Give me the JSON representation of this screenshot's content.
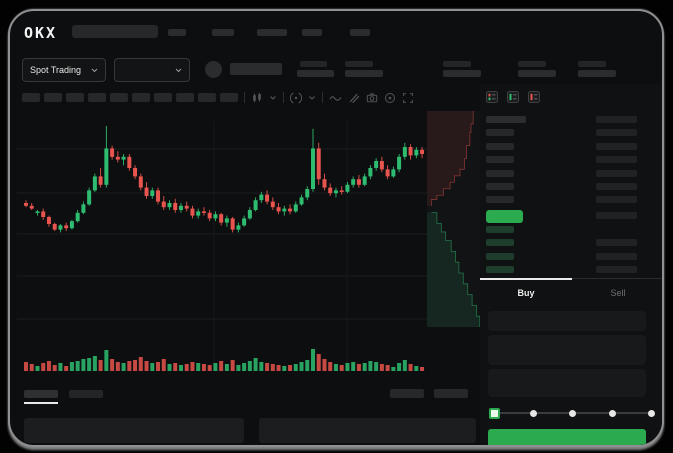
{
  "colors": {
    "accent_green": "#2BAA4F",
    "candle_green": "#2EBD70",
    "candle_red": "#E8544E",
    "background": "#0D0E0F",
    "bid_row_green": "#1E3D2C",
    "ask_row_gray": "#26282A",
    "amount_bar_gray": "#202224",
    "tab_active_text": "#EDEDED",
    "tab_inactive_text": "#6E7071"
  },
  "header": {
    "logo_text": "OKX"
  },
  "market_bar": {
    "market_type_label": "Spot Trading"
  },
  "chart_toolbar": {
    "timeframe_placeholder_count": 10,
    "icons": [
      "chart-type-icon",
      "chevron-down-icon",
      "indicators-icon",
      "chevron-down-icon",
      "line-tool-icon",
      "drawing-tools-icon",
      "camera-icon",
      "target-icon",
      "fullscreen-icon"
    ]
  },
  "order_book": {
    "view_icons": [
      "combined-book-icon",
      "bids-only-icon",
      "asks-only-icon"
    ],
    "has_header_row": true,
    "ask_row_count": 6,
    "bid_row_count": 4
  },
  "trade_panel": {
    "buy_tab_label": "Buy",
    "sell_tab_label": "Sell",
    "field_count": 3,
    "slider": {
      "stop_count": 5,
      "active_stop_index": 0
    }
  },
  "bottom_panel": {
    "tab_count": 2,
    "active_tab_index": 0,
    "right_button_count": 2,
    "table_placeholder_count": 2
  },
  "chart_data": {
    "type": "candlestick",
    "up_color": "#2EBD70",
    "down_color": "#E8544E",
    "grid": true,
    "price_scale_range": [
      0,
      100
    ],
    "candles": [
      [
        45,
        47,
        42,
        43
      ],
      [
        43,
        45,
        40,
        41
      ],
      [
        38,
        40,
        36,
        39
      ],
      [
        39,
        41,
        33,
        35
      ],
      [
        35,
        36,
        28,
        30
      ],
      [
        30,
        31,
        25,
        26
      ],
      [
        26,
        30,
        24,
        29
      ],
      [
        29,
        31,
        25,
        27
      ],
      [
        27,
        33,
        26,
        32
      ],
      [
        32,
        40,
        31,
        38
      ],
      [
        38,
        46,
        37,
        44
      ],
      [
        44,
        56,
        43,
        54
      ],
      [
        54,
        66,
        53,
        64
      ],
      [
        64,
        70,
        56,
        58
      ],
      [
        58,
        100,
        56,
        84
      ],
      [
        84,
        86,
        76,
        78
      ],
      [
        78,
        82,
        74,
        76
      ],
      [
        76,
        80,
        72,
        78
      ],
      [
        78,
        80,
        68,
        70
      ],
      [
        70,
        72,
        62,
        64
      ],
      [
        64,
        66,
        54,
        56
      ],
      [
        56,
        60,
        48,
        50
      ],
      [
        50,
        56,
        48,
        54
      ],
      [
        54,
        56,
        44,
        46
      ],
      [
        46,
        50,
        40,
        42
      ],
      [
        42,
        47,
        40,
        45
      ],
      [
        45,
        48,
        38,
        40
      ],
      [
        40,
        45,
        38,
        43
      ],
      [
        43,
        46,
        39,
        41
      ],
      [
        41,
        43,
        34,
        36
      ],
      [
        36,
        41,
        34,
        39
      ],
      [
        39,
        42,
        36,
        38
      ],
      [
        38,
        40,
        32,
        34
      ],
      [
        34,
        39,
        32,
        37
      ],
      [
        37,
        38,
        29,
        31
      ],
      [
        31,
        36,
        28,
        34
      ],
      [
        34,
        35,
        24,
        26
      ],
      [
        26,
        31,
        24,
        29
      ],
      [
        29,
        36,
        28,
        34
      ],
      [
        34,
        42,
        33,
        40
      ],
      [
        40,
        49,
        39,
        47
      ],
      [
        47,
        53,
        45,
        51
      ],
      [
        51,
        54,
        44,
        46
      ],
      [
        46,
        49,
        40,
        42
      ],
      [
        42,
        45,
        37,
        39
      ],
      [
        39,
        43,
        36,
        41
      ],
      [
        41,
        44,
        37,
        39
      ],
      [
        39,
        46,
        38,
        44
      ],
      [
        44,
        51,
        43,
        49
      ],
      [
        49,
        57,
        47,
        55
      ],
      [
        55,
        98,
        53,
        84
      ],
      [
        84,
        88,
        58,
        62
      ],
      [
        62,
        66,
        54,
        56
      ],
      [
        56,
        59,
        50,
        52
      ],
      [
        52,
        56,
        49,
        54
      ],
      [
        54,
        57,
        51,
        53
      ],
      [
        53,
        60,
        52,
        58
      ],
      [
        58,
        64,
        56,
        62
      ],
      [
        62,
        65,
        56,
        58
      ],
      [
        58,
        66,
        57,
        64
      ],
      [
        64,
        72,
        62,
        70
      ],
      [
        70,
        77,
        68,
        75
      ],
      [
        75,
        78,
        67,
        69
      ],
      [
        69,
        72,
        62,
        64
      ],
      [
        64,
        71,
        63,
        69
      ],
      [
        69,
        80,
        67,
        78
      ],
      [
        78,
        88,
        76,
        85
      ],
      [
        85,
        87,
        76,
        79
      ],
      [
        79,
        85,
        77,
        83
      ],
      [
        83,
        85,
        77,
        80
      ]
    ],
    "volumes": [
      9,
      7,
      5,
      8,
      10,
      6,
      8,
      5,
      9,
      10,
      12,
      13,
      15,
      11,
      21,
      12,
      9,
      8,
      10,
      11,
      14,
      10,
      8,
      9,
      12,
      7,
      8,
      6,
      7,
      9,
      8,
      7,
      6,
      8,
      10,
      7,
      11,
      6,
      8,
      10,
      13,
      9,
      8,
      7,
      6,
      5,
      6,
      7,
      9,
      11,
      22,
      17,
      12,
      9,
      7,
      6,
      8,
      9,
      7,
      8,
      10,
      9,
      7,
      6,
      4,
      8,
      11,
      7,
      5,
      4
    ]
  },
  "depth_chart": {
    "type": "depth",
    "ask_color": "#E8544E",
    "bid_color": "#2EBD70",
    "asks_curve": [
      [
        0.86,
        0.0
      ],
      [
        0.84,
        0.06
      ],
      [
        0.8,
        0.1
      ],
      [
        0.78,
        0.16
      ],
      [
        0.72,
        0.22
      ],
      [
        0.68,
        0.27
      ],
      [
        0.6,
        0.3
      ],
      [
        0.5,
        0.33
      ],
      [
        0.42,
        0.36
      ],
      [
        0.3,
        0.39
      ],
      [
        0.18,
        0.41
      ],
      [
        0.08,
        0.44
      ]
    ],
    "bids_curve": [
      [
        0.08,
        0.47
      ],
      [
        0.18,
        0.52
      ],
      [
        0.26,
        0.56
      ],
      [
        0.34,
        0.6
      ],
      [
        0.44,
        0.65
      ],
      [
        0.52,
        0.7
      ],
      [
        0.58,
        0.75
      ],
      [
        0.66,
        0.8
      ],
      [
        0.74,
        0.85
      ],
      [
        0.82,
        0.9
      ],
      [
        0.9,
        0.95
      ],
      [
        0.96,
        1.0
      ]
    ]
  }
}
